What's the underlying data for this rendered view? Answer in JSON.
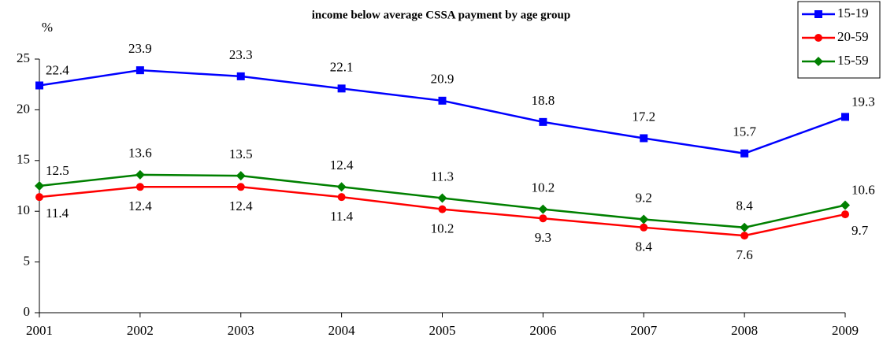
{
  "chart_data": {
    "type": "line",
    "title": "income below average CSSA payment  by age group",
    "y_label": "%",
    "categories": [
      "2001",
      "2002",
      "2003",
      "2004",
      "2005",
      "2006",
      "2007",
      "2008",
      "2009"
    ],
    "series": [
      {
        "name": "15-19",
        "color": "#0000ff",
        "marker": "square",
        "label_position": "above",
        "values": [
          22.4,
          23.9,
          23.3,
          22.1,
          20.9,
          18.8,
          17.2,
          15.7,
          19.3
        ]
      },
      {
        "name": "20-59",
        "color": "#ff0000",
        "marker": "circle",
        "label_position": "below",
        "values": [
          11.4,
          12.4,
          12.4,
          11.4,
          10.2,
          9.3,
          8.4,
          7.6,
          9.7
        ]
      },
      {
        "name": "15-59",
        "color": "#008000",
        "marker": "diamond",
        "label_position": "above",
        "values": [
          12.5,
          13.6,
          13.5,
          12.4,
          11.3,
          10.2,
          9.2,
          8.4,
          10.6
        ]
      }
    ],
    "ylim": [
      0,
      25
    ],
    "yticks": [
      0,
      5,
      10,
      15,
      20,
      25
    ],
    "grid": false,
    "legend": "top-right"
  }
}
